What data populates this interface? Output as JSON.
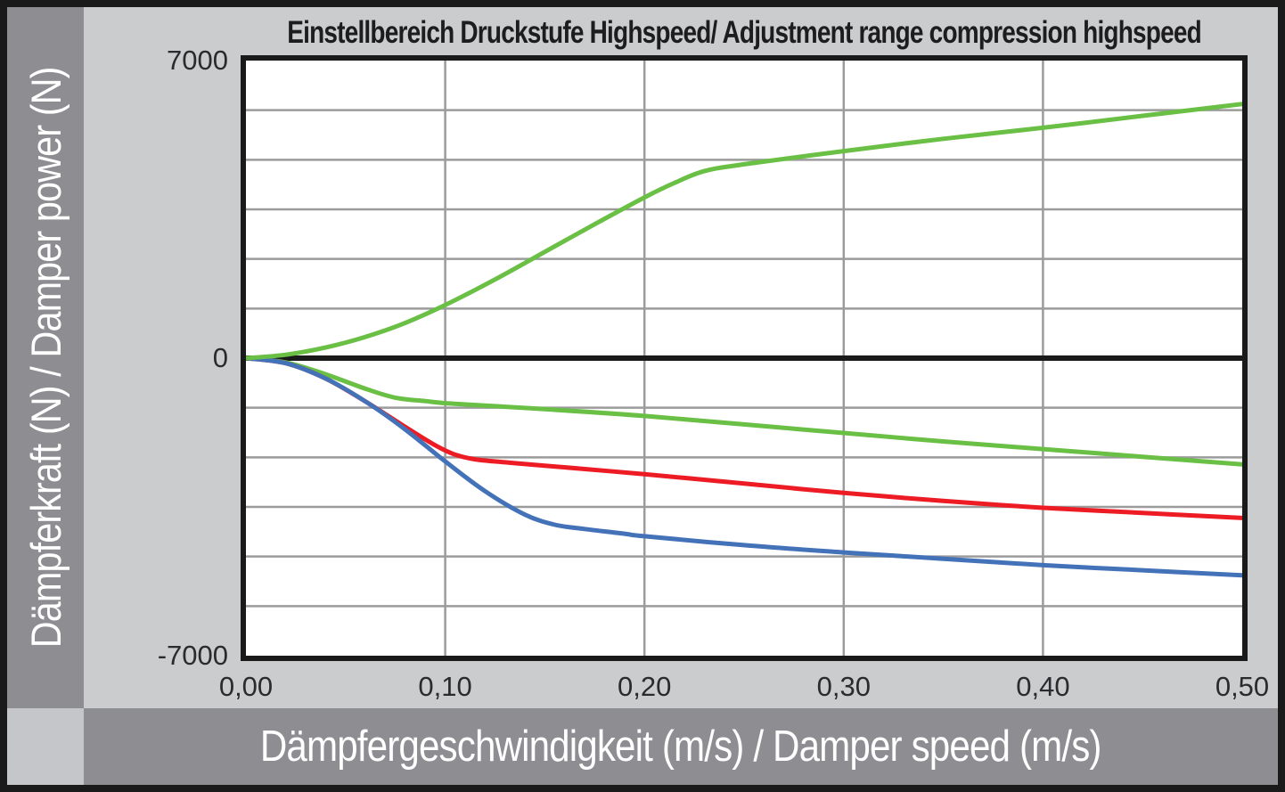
{
  "y_axis_bar": {
    "label": "Dämpferkraft (N) / Damper power (N)",
    "bg": "#8d8d92",
    "text_color": "#ffffff"
  },
  "x_axis_bar": {
    "label": "Dämpfergeschwindigkeit (m/s) / Damper speed (m/s)",
    "bg": "#8d8d92",
    "text_color": "#ffffff"
  },
  "chart_data": {
    "type": "line",
    "title": "Einstellbereich Druckstufe Highspeed/ Adjustment range compression highspeed",
    "xlabel": "Dämpfergeschwindigkeit (m/s) / Damper speed (m/s)",
    "ylabel": "Dämpferkraft (N) / Damper power (N)",
    "xlim": [
      0,
      0.5
    ],
    "ylim": [
      -7000,
      7000
    ],
    "x_ticks": [
      {
        "value": 0.0,
        "label": "0,00"
      },
      {
        "value": 0.1,
        "label": "0,10"
      },
      {
        "value": 0.2,
        "label": "0,20"
      },
      {
        "value": 0.3,
        "label": "0,30"
      },
      {
        "value": 0.4,
        "label": "0,40"
      },
      {
        "value": 0.5,
        "label": "0,50"
      }
    ],
    "y_ticks": [
      {
        "value": 7000,
        "label": "7000"
      },
      {
        "value": 0,
        "label": "0"
      },
      {
        "value": -7000,
        "label": "-7000"
      }
    ],
    "grid": {
      "show": true,
      "color": "#9b9b9b",
      "vertical_values": [
        0.1,
        0.2,
        0.3,
        0.4
      ],
      "horizontal_divisions": 12
    },
    "zero_line": {
      "value": 0,
      "color": "#1a1a1a",
      "width": 6
    },
    "legend": "none",
    "line_width": 5,
    "series": [
      {
        "name": "compression-range-lower-green",
        "color": "#6abf45",
        "points": [
          [
            0,
            0
          ],
          [
            0.02,
            -100
          ],
          [
            0.04,
            -380
          ],
          [
            0.06,
            -720
          ],
          [
            0.075,
            -930
          ],
          [
            0.09,
            -1010
          ],
          [
            0.1,
            -1060
          ],
          [
            0.125,
            -1130
          ],
          [
            0.15,
            -1200
          ],
          [
            0.2,
            -1360
          ],
          [
            0.25,
            -1560
          ],
          [
            0.3,
            -1760
          ],
          [
            0.35,
            -1960
          ],
          [
            0.4,
            -2140
          ],
          [
            0.45,
            -2320
          ],
          [
            0.5,
            -2500
          ]
        ]
      },
      {
        "name": "setting-red",
        "color": "#ed1c24",
        "points": [
          [
            0,
            0
          ],
          [
            0.02,
            -120
          ],
          [
            0.04,
            -480
          ],
          [
            0.06,
            -1020
          ],
          [
            0.08,
            -1620
          ],
          [
            0.095,
            -2050
          ],
          [
            0.105,
            -2270
          ],
          [
            0.115,
            -2380
          ],
          [
            0.13,
            -2450
          ],
          [
            0.15,
            -2530
          ],
          [
            0.2,
            -2730
          ],
          [
            0.25,
            -2950
          ],
          [
            0.3,
            -3170
          ],
          [
            0.35,
            -3360
          ],
          [
            0.4,
            -3520
          ],
          [
            0.45,
            -3640
          ],
          [
            0.5,
            -3760
          ]
        ]
      },
      {
        "name": "setting-blue",
        "color": "#4472b8",
        "points": [
          [
            0,
            0
          ],
          [
            0.02,
            -120
          ],
          [
            0.04,
            -480
          ],
          [
            0.06,
            -1020
          ],
          [
            0.08,
            -1680
          ],
          [
            0.1,
            -2430
          ],
          [
            0.12,
            -3130
          ],
          [
            0.14,
            -3680
          ],
          [
            0.155,
            -3920
          ],
          [
            0.17,
            -4020
          ],
          [
            0.19,
            -4130
          ],
          [
            0.2,
            -4190
          ],
          [
            0.25,
            -4400
          ],
          [
            0.3,
            -4570
          ],
          [
            0.35,
            -4720
          ],
          [
            0.4,
            -4870
          ],
          [
            0.45,
            -4990
          ],
          [
            0.5,
            -5110
          ]
        ]
      },
      {
        "name": "compression-range-upper-green",
        "color": "#6abf45",
        "points": [
          [
            0,
            0
          ],
          [
            0.02,
            80
          ],
          [
            0.04,
            250
          ],
          [
            0.06,
            500
          ],
          [
            0.08,
            830
          ],
          [
            0.1,
            1250
          ],
          [
            0.125,
            1850
          ],
          [
            0.15,
            2500
          ],
          [
            0.175,
            3150
          ],
          [
            0.2,
            3780
          ],
          [
            0.215,
            4120
          ],
          [
            0.23,
            4400
          ],
          [
            0.25,
            4560
          ],
          [
            0.3,
            4870
          ],
          [
            0.35,
            5160
          ],
          [
            0.4,
            5420
          ],
          [
            0.45,
            5700
          ],
          [
            0.5,
            5980
          ]
        ]
      }
    ]
  }
}
